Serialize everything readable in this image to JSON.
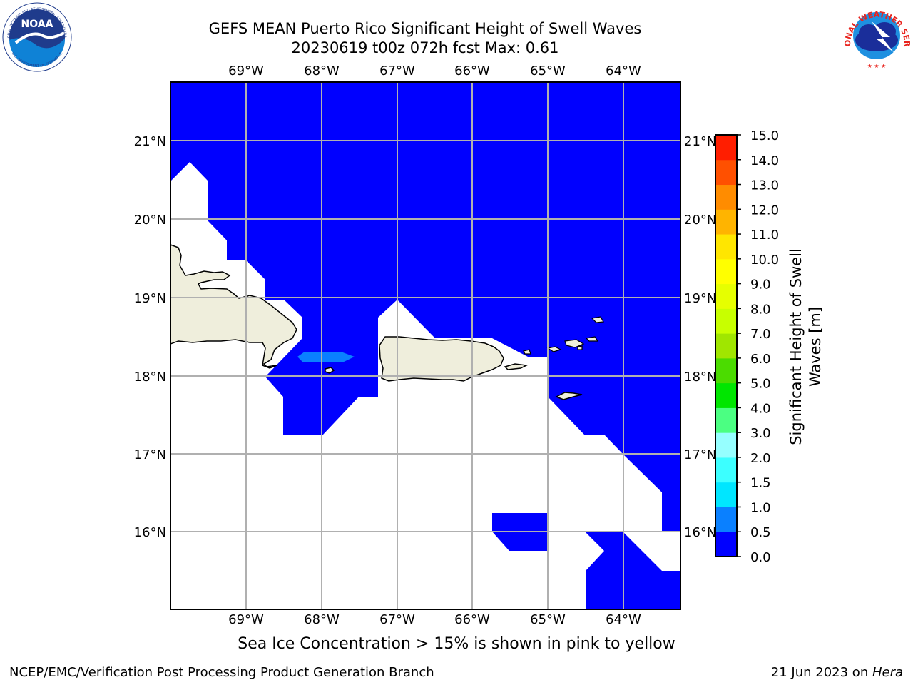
{
  "title_line1": "GEFS MEAN Puerto Rico Significant Height of Swell Waves",
  "title_line2": "20230619 t00z 072h fcst   Max: 0.61",
  "ice_note": "Sea Ice Concentration > 15% is shown in pink to yellow",
  "footer_left": "NCEP/EMC/Verification Post Processing Product Generation Branch",
  "footer_right_date": "21 Jun 2023 on ",
  "footer_right_host": "Hera",
  "logos": {
    "left": "noaa-logo",
    "right": "nws-logo"
  },
  "noaa_logo_text": "NOAA",
  "noaa_ring_text": "NATIONAL OCEANIC AND ATMOSPHERIC ADMINISTRATION",
  "noaa_ring_text_bottom": "U.S. DEPARTMENT OF COMMERCE",
  "nws_ring_text": "NATIONAL WEATHER SERVICE",
  "map": {
    "lon_ticks": [
      "69°W",
      "68°W",
      "67°W",
      "66°W",
      "65°W",
      "64°W"
    ],
    "lat_ticks": [
      "21°N",
      "20°N",
      "19°N",
      "18°N",
      "17°N",
      "16°N"
    ],
    "ocean_color": "#0000ff",
    "land_color": "#efeedc",
    "band_color": "#0a80ff"
  },
  "colorbar": {
    "label_line1": "Significant Height of Swell",
    "label_line2": "Waves [m]",
    "levels": [
      "0.0",
      "0.5",
      "1.0",
      "1.5",
      "2.0",
      "3.0",
      "4.0",
      "5.0",
      "6.0",
      "7.0",
      "8.0",
      "9.0",
      "10.0",
      "11.0",
      "12.0",
      "13.0",
      "14.0",
      "15.0"
    ],
    "colors": [
      "#0000ff",
      "#0a80ff",
      "#00e6ff",
      "#3cffff",
      "#96ffff",
      "#4bff82",
      "#00e600",
      "#4bdc00",
      "#a0e600",
      "#c8ff00",
      "#e6ff00",
      "#ffff00",
      "#ffe600",
      "#ffb400",
      "#ff8c00",
      "#ff5000",
      "#ff1e00"
    ]
  }
}
